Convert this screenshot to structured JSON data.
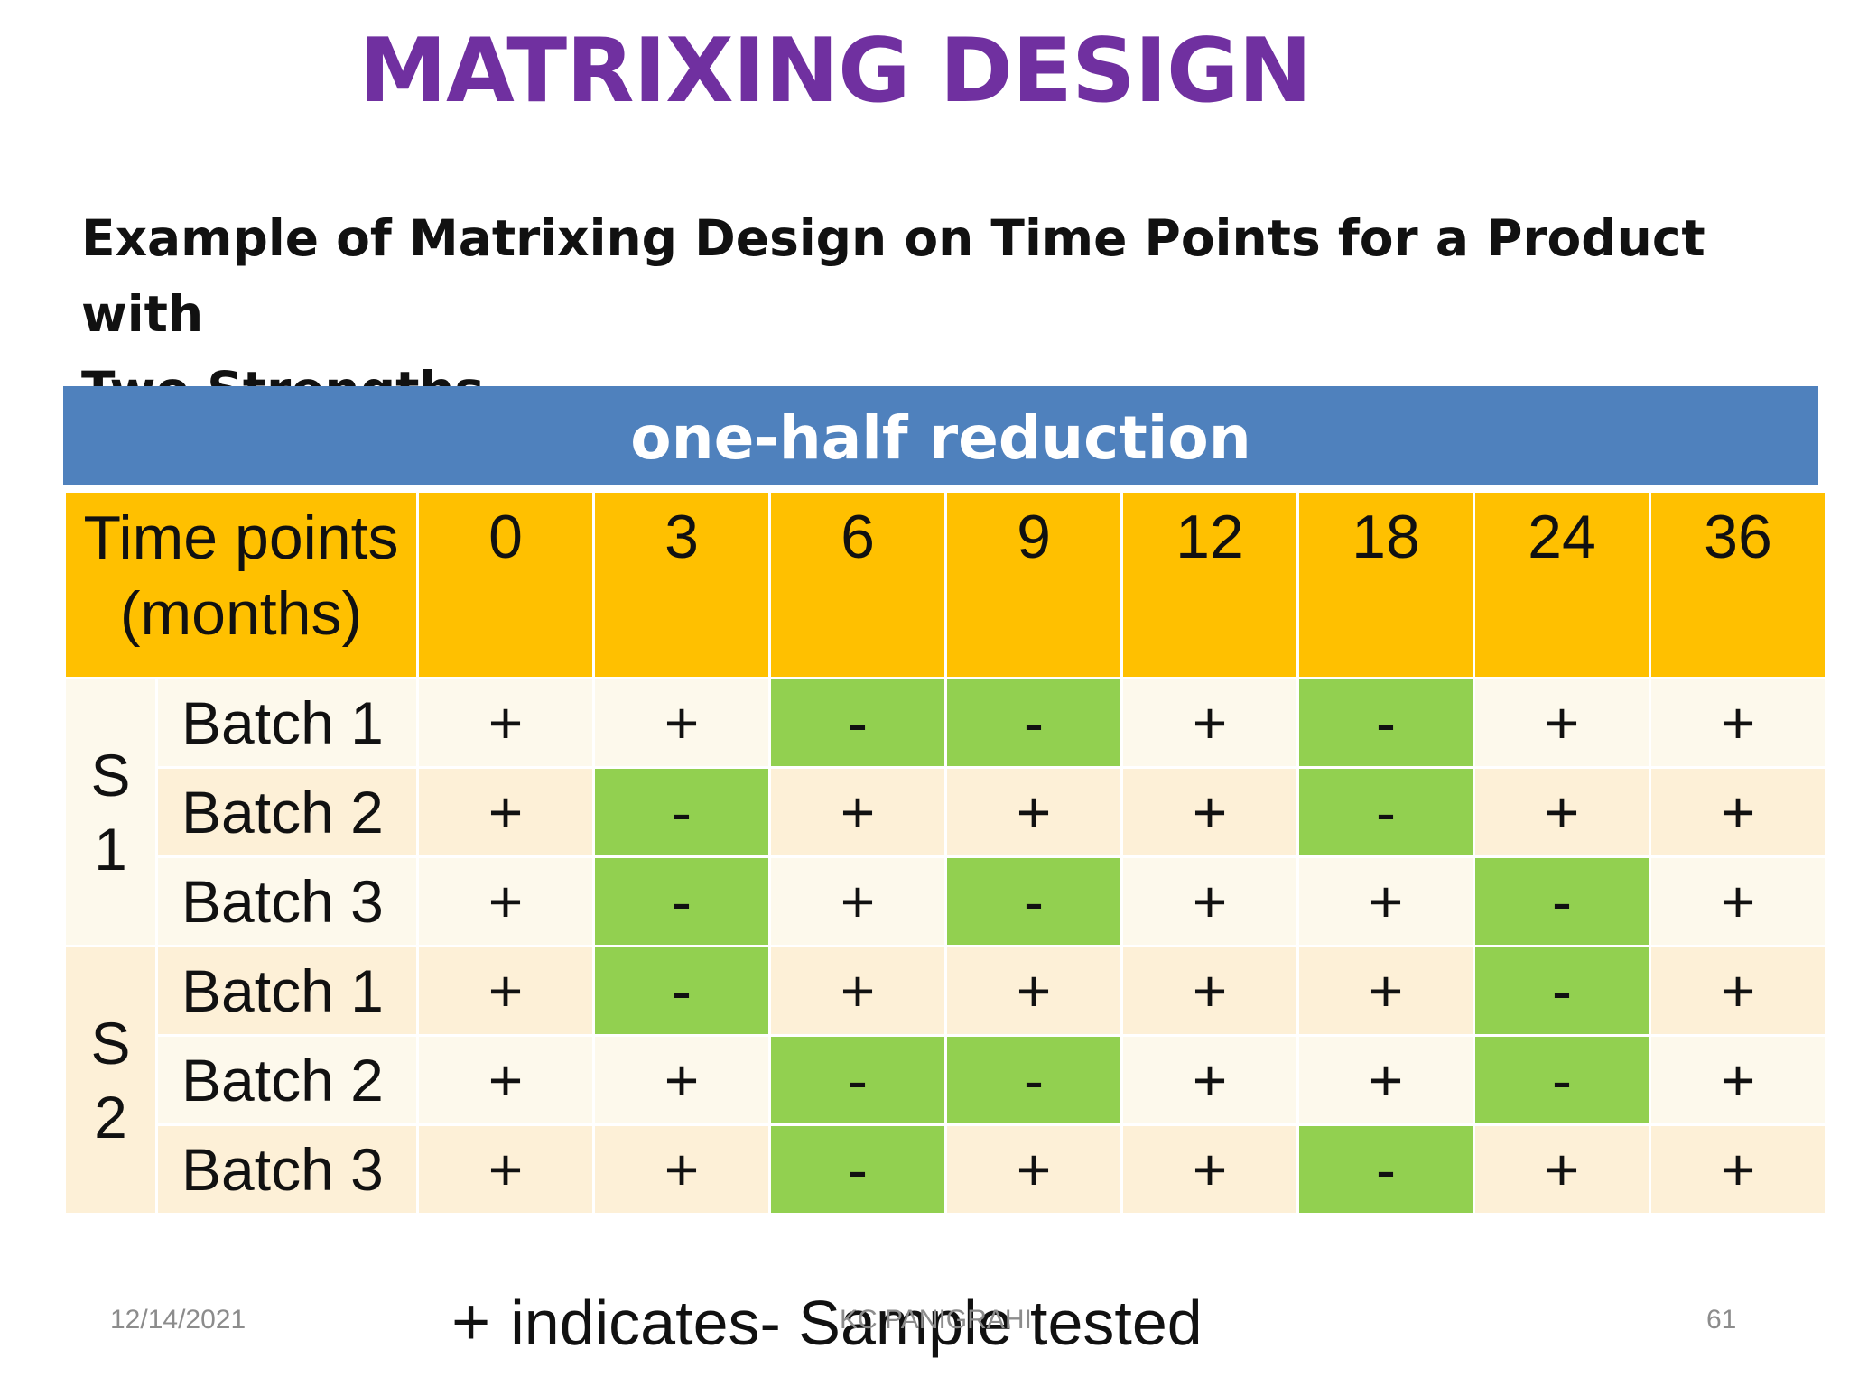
{
  "slide": {
    "title": "MATRIXING DESIGN",
    "subtitle_line1": "Example of Matrixing Design on Time Points for a Product with",
    "subtitle_line2": "Two Strengths",
    "banner": "one-half reduction"
  },
  "table": {
    "time_label_line1": "Time points",
    "time_label_line2": "(months)",
    "time_points": [
      "0",
      "3",
      "6",
      "9",
      "12",
      "18",
      "24",
      "36"
    ],
    "groups": [
      {
        "strength_line1": "S",
        "strength_line2": "1",
        "rows": [
          {
            "batch": "Batch 1",
            "cells": [
              "+",
              "+",
              "-",
              "-",
              "+",
              "-",
              "+",
              "+"
            ]
          },
          {
            "batch": "Batch 2",
            "cells": [
              "+",
              "-",
              "+",
              "+",
              "+",
              "-",
              "+",
              "+"
            ]
          },
          {
            "batch": "Batch 3",
            "cells": [
              "+",
              "-",
              "+",
              "-",
              "+",
              "+",
              "-",
              "+"
            ]
          }
        ]
      },
      {
        "strength_line1": "S",
        "strength_line2": "2",
        "rows": [
          {
            "batch": "Batch 1",
            "cells": [
              "+",
              "-",
              "+",
              "+",
              "+",
              "+",
              "-",
              "+"
            ]
          },
          {
            "batch": "Batch 2",
            "cells": [
              "+",
              "+",
              "-",
              "-",
              "+",
              "+",
              "-",
              "+"
            ]
          },
          {
            "batch": "Batch 3",
            "cells": [
              "+",
              "+",
              "-",
              "+",
              "+",
              "-",
              "+",
              "+"
            ]
          }
        ]
      }
    ]
  },
  "legend": {
    "symbol": "+",
    "text": "indicates- Sample tested"
  },
  "footer": {
    "date": "12/14/2021",
    "author": "KC PANIGRAHI",
    "page": "61"
  },
  "colors": {
    "title": "#7030a0",
    "banner": "#4f81bd",
    "header": "#ffc000",
    "minus_cell": "#92d050"
  }
}
